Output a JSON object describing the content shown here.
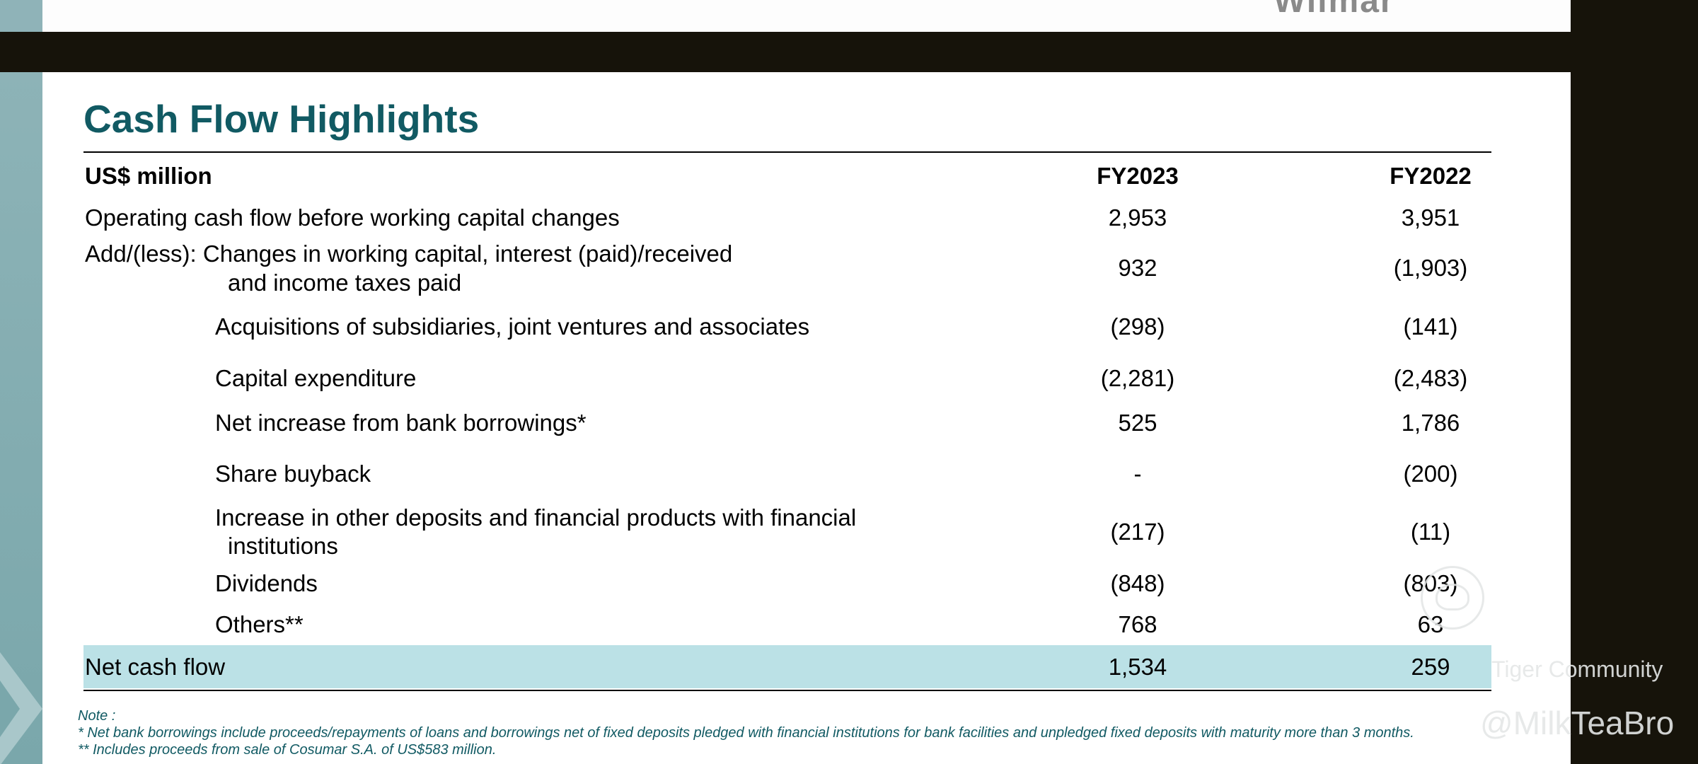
{
  "header": {
    "logo_text": "Wilmar"
  },
  "slide": {
    "title": "Cash Flow Highlights",
    "table": {
      "unit_label": "US$ million",
      "columns": [
        "FY2023",
        "FY2022"
      ],
      "rows": [
        {
          "label": "Operating cash flow before working capital changes",
          "fy2023": "2,953",
          "fy2022": "3,951"
        },
        {
          "label": "Add/(less):  Changes in working capital, interest (paid)/received",
          "label_cont": "and income taxes paid",
          "fy2023": "932",
          "fy2022": "(1,903)"
        },
        {
          "label": "Acquisitions of subsidiaries, joint ventures and associates",
          "fy2023": "(298)",
          "fy2022": "(141)"
        },
        {
          "label": "Capital expenditure",
          "fy2023": "(2,281)",
          "fy2022": "(2,483)"
        },
        {
          "label": "Net increase from bank borrowings*",
          "fy2023": "525",
          "fy2022": "1,786"
        },
        {
          "label": "Share buyback",
          "fy2023": "-",
          "fy2022": "(200)"
        },
        {
          "label": "Increase in other deposits and financial products with financial",
          "label_cont": "institutions",
          "fy2023": "(217)",
          "fy2022": "(11)"
        },
        {
          "label": "Dividends",
          "fy2023": "(848)",
          "fy2022": "(803)"
        },
        {
          "label": "Others**",
          "fy2023": "768",
          "fy2022": "63"
        }
      ],
      "total": {
        "label": "Net cash flow",
        "fy2023": "1,534",
        "fy2022": "259"
      }
    },
    "notes": [
      "Note :",
      "* Net bank borrowings include proceeds/repayments of loans and borrowings net of fixed deposits pledged with financial institutions for bank facilities and unpledged fixed deposits with maturity more than 3 months.",
      "** Includes proceeds from sale of Cosumar S.A. of US$583 million."
    ]
  },
  "watermark": {
    "community": "Tiger Community",
    "handle": "@MilkTeaBro"
  },
  "colors": {
    "title": "#115a63",
    "total_row_bg": "#bbe1e6",
    "side_band": "#8db3b7",
    "frame": "#16130a"
  }
}
